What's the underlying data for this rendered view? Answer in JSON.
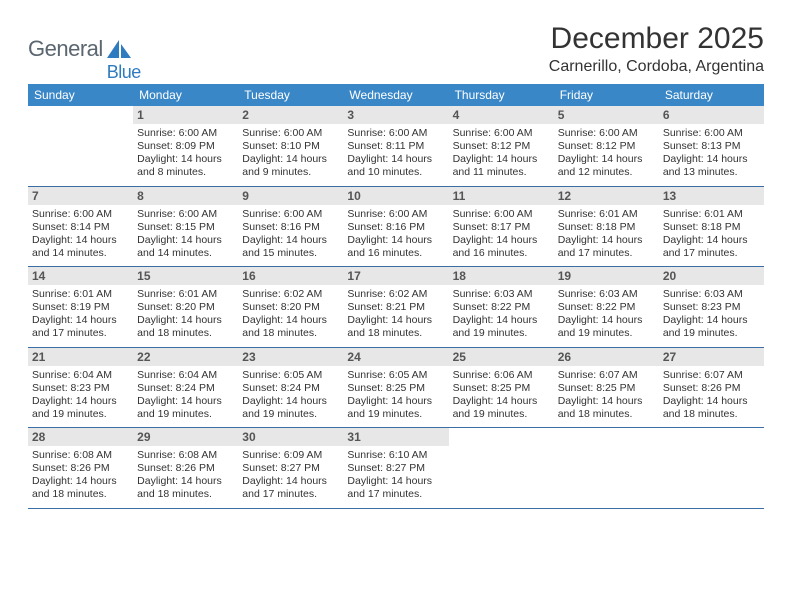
{
  "brand": {
    "text1": "General",
    "text2": "Blue",
    "text1_color": "#5b6670",
    "text2_color": "#2f7bbf",
    "sail_color": "#2f7bbf"
  },
  "title": "December 2025",
  "location": "Carnerillo, Cordoba, Argentina",
  "colors": {
    "header_bg": "#3a87c8",
    "header_text": "#ffffff",
    "daynum_bg": "#e7e7e7",
    "daynum_text": "#555555",
    "row_border": "#3a6ea5",
    "body_text": "#333333",
    "page_bg": "#ffffff"
  },
  "weekdays": [
    "Sunday",
    "Monday",
    "Tuesday",
    "Wednesday",
    "Thursday",
    "Friday",
    "Saturday"
  ],
  "weeks": [
    [
      null,
      {
        "n": "1",
        "sr": "6:00 AM",
        "ss": "8:09 PM",
        "dl": "14 hours and 8 minutes."
      },
      {
        "n": "2",
        "sr": "6:00 AM",
        "ss": "8:10 PM",
        "dl": "14 hours and 9 minutes."
      },
      {
        "n": "3",
        "sr": "6:00 AM",
        "ss": "8:11 PM",
        "dl": "14 hours and 10 minutes."
      },
      {
        "n": "4",
        "sr": "6:00 AM",
        "ss": "8:12 PM",
        "dl": "14 hours and 11 minutes."
      },
      {
        "n": "5",
        "sr": "6:00 AM",
        "ss": "8:12 PM",
        "dl": "14 hours and 12 minutes."
      },
      {
        "n": "6",
        "sr": "6:00 AM",
        "ss": "8:13 PM",
        "dl": "14 hours and 13 minutes."
      }
    ],
    [
      {
        "n": "7",
        "sr": "6:00 AM",
        "ss": "8:14 PM",
        "dl": "14 hours and 14 minutes."
      },
      {
        "n": "8",
        "sr": "6:00 AM",
        "ss": "8:15 PM",
        "dl": "14 hours and 14 minutes."
      },
      {
        "n": "9",
        "sr": "6:00 AM",
        "ss": "8:16 PM",
        "dl": "14 hours and 15 minutes."
      },
      {
        "n": "10",
        "sr": "6:00 AM",
        "ss": "8:16 PM",
        "dl": "14 hours and 16 minutes."
      },
      {
        "n": "11",
        "sr": "6:00 AM",
        "ss": "8:17 PM",
        "dl": "14 hours and 16 minutes."
      },
      {
        "n": "12",
        "sr": "6:01 AM",
        "ss": "8:18 PM",
        "dl": "14 hours and 17 minutes."
      },
      {
        "n": "13",
        "sr": "6:01 AM",
        "ss": "8:18 PM",
        "dl": "14 hours and 17 minutes."
      }
    ],
    [
      {
        "n": "14",
        "sr": "6:01 AM",
        "ss": "8:19 PM",
        "dl": "14 hours and 17 minutes."
      },
      {
        "n": "15",
        "sr": "6:01 AM",
        "ss": "8:20 PM",
        "dl": "14 hours and 18 minutes."
      },
      {
        "n": "16",
        "sr": "6:02 AM",
        "ss": "8:20 PM",
        "dl": "14 hours and 18 minutes."
      },
      {
        "n": "17",
        "sr": "6:02 AM",
        "ss": "8:21 PM",
        "dl": "14 hours and 18 minutes."
      },
      {
        "n": "18",
        "sr": "6:03 AM",
        "ss": "8:22 PM",
        "dl": "14 hours and 19 minutes."
      },
      {
        "n": "19",
        "sr": "6:03 AM",
        "ss": "8:22 PM",
        "dl": "14 hours and 19 minutes."
      },
      {
        "n": "20",
        "sr": "6:03 AM",
        "ss": "8:23 PM",
        "dl": "14 hours and 19 minutes."
      }
    ],
    [
      {
        "n": "21",
        "sr": "6:04 AM",
        "ss": "8:23 PM",
        "dl": "14 hours and 19 minutes."
      },
      {
        "n": "22",
        "sr": "6:04 AM",
        "ss": "8:24 PM",
        "dl": "14 hours and 19 minutes."
      },
      {
        "n": "23",
        "sr": "6:05 AM",
        "ss": "8:24 PM",
        "dl": "14 hours and 19 minutes."
      },
      {
        "n": "24",
        "sr": "6:05 AM",
        "ss": "8:25 PM",
        "dl": "14 hours and 19 minutes."
      },
      {
        "n": "25",
        "sr": "6:06 AM",
        "ss": "8:25 PM",
        "dl": "14 hours and 19 minutes."
      },
      {
        "n": "26",
        "sr": "6:07 AM",
        "ss": "8:25 PM",
        "dl": "14 hours and 18 minutes."
      },
      {
        "n": "27",
        "sr": "6:07 AM",
        "ss": "8:26 PM",
        "dl": "14 hours and 18 minutes."
      }
    ],
    [
      {
        "n": "28",
        "sr": "6:08 AM",
        "ss": "8:26 PM",
        "dl": "14 hours and 18 minutes."
      },
      {
        "n": "29",
        "sr": "6:08 AM",
        "ss": "8:26 PM",
        "dl": "14 hours and 18 minutes."
      },
      {
        "n": "30",
        "sr": "6:09 AM",
        "ss": "8:27 PM",
        "dl": "14 hours and 17 minutes."
      },
      {
        "n": "31",
        "sr": "6:10 AM",
        "ss": "8:27 PM",
        "dl": "14 hours and 17 minutes."
      },
      null,
      null,
      null
    ]
  ],
  "labels": {
    "sunrise": "Sunrise:",
    "sunset": "Sunset:",
    "daylight": "Daylight:"
  }
}
